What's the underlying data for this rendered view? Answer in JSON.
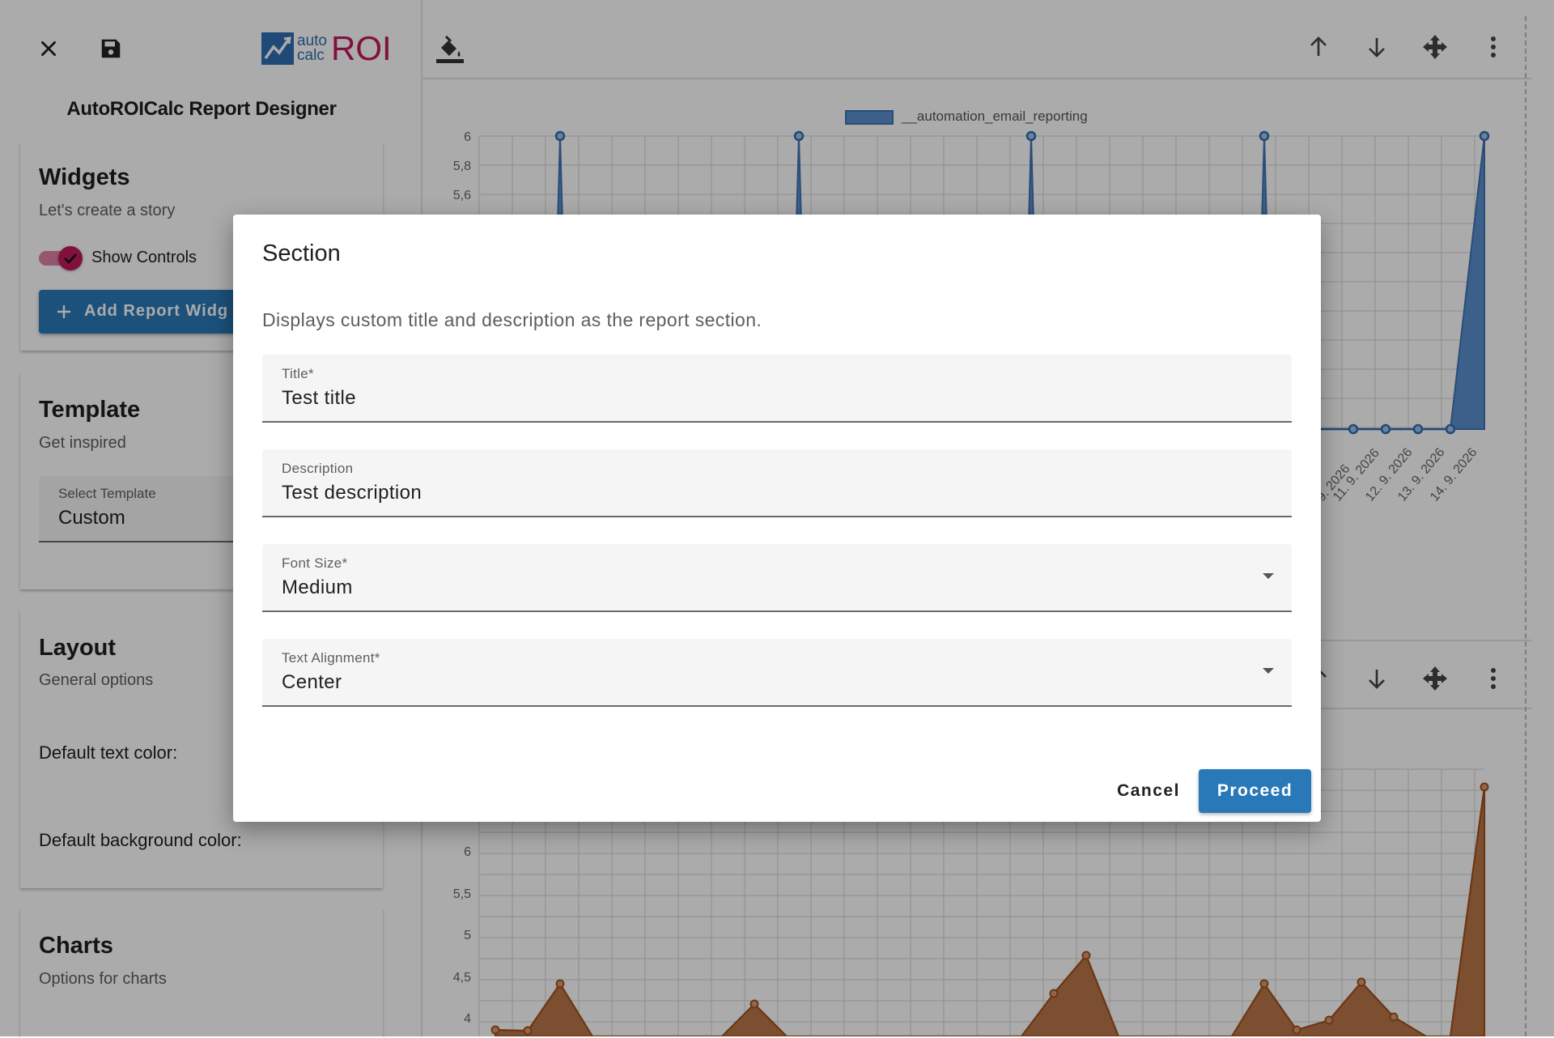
{
  "app": {
    "logo_top": "auto",
    "logo_bottom": "calc",
    "logo_roi": "ROI",
    "designer_title": "AutoROICalc Report Designer"
  },
  "sidebar": {
    "widgets": {
      "title": "Widgets",
      "subtitle": "Let's create a story",
      "show_controls_label": "Show Controls",
      "show_controls_on": true,
      "add_button_label": "Add Report Widg"
    },
    "template": {
      "title": "Template",
      "subtitle": "Get inspired",
      "select_label": "Select Template",
      "select_value": "Custom"
    },
    "layout": {
      "title": "Layout",
      "subtitle": "General options",
      "text_color_label": "Default text color:",
      "bg_color_label": "Default background color:"
    },
    "charts": {
      "title": "Charts",
      "subtitle": "Options for charts"
    }
  },
  "chart_data": [
    {
      "type": "area",
      "legend": "__automation_email_reporting",
      "series": [
        {
          "name": "__automation_email_reporting",
          "color": "#4a82c4"
        }
      ],
      "y_ticks": [
        "6",
        "5,8",
        "5,6"
      ],
      "x_tick_labels": [
        "9. 2026",
        "11. 9. 2026",
        "12. 9. 2026",
        "13. 9. 2026",
        "14. 9. 2026"
      ],
      "y_range": [
        5.6,
        6
      ]
    },
    {
      "type": "area",
      "series": [
        {
          "color": "#c06a2c"
        }
      ],
      "y_ticks": [
        "6",
        "5,5",
        "5",
        "4,5",
        "4"
      ],
      "y_range": [
        4,
        6.5
      ]
    }
  ],
  "modal": {
    "title": "Section",
    "description": "Displays custom title and description as the report section.",
    "fields": {
      "title": {
        "label": "Title*",
        "value": "Test title"
      },
      "description": {
        "label": "Description",
        "value": "Test description"
      },
      "font_size": {
        "label": "Font Size*",
        "value": "Medium"
      },
      "text_alignment": {
        "label": "Text Alignment*",
        "value": "Center"
      }
    },
    "cancel_label": "Cancel",
    "proceed_label": "Proceed"
  },
  "colors": {
    "primary": "#2979b8",
    "toggle": "#c2185b",
    "overlay": "rgba(0,0,0,0.33)"
  }
}
